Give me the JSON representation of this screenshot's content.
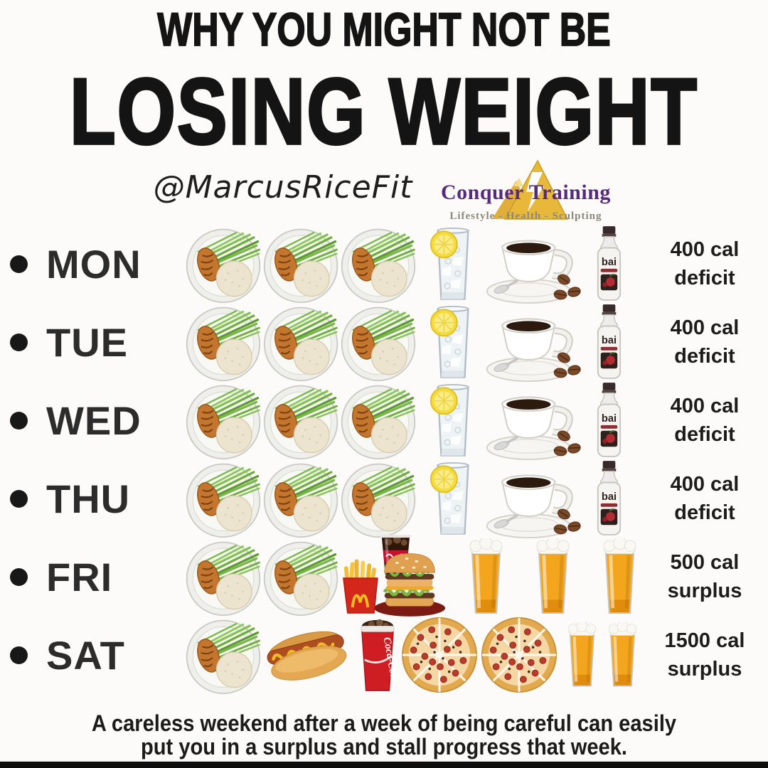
{
  "title": {
    "line1": "WHY YOU MIGHT NOT BE",
    "line2": "LOSING WEIGHT"
  },
  "brand": {
    "handle": "@MarcusRiceFit",
    "logo_text": "Conquer Training",
    "logo_tagline": "Lifestyle - Health - Sculpting"
  },
  "colors": {
    "title_black": "#141414",
    "day_label": "#2c2c2c",
    "logo_purple": "#572a7d",
    "logo_gold": "#e8b83a",
    "coke_red": "#ce1d23",
    "mcdonalds_red": "#d3271c",
    "beer_amber": "#f3a51e",
    "background": "#fcfbf9"
  },
  "week": {
    "rows": [
      {
        "day": "MON",
        "items": [
          "meal-plate",
          "meal-plate",
          "meal-plate",
          "water-lemon",
          "coffee",
          "bai-bottle"
        ],
        "result": {
          "line1": "400 cal",
          "line2": "deficit"
        }
      },
      {
        "day": "TUE",
        "items": [
          "meal-plate",
          "meal-plate",
          "meal-plate",
          "water-lemon",
          "coffee",
          "bai-bottle"
        ],
        "result": {
          "line1": "400 cal",
          "line2": "deficit"
        }
      },
      {
        "day": "WED",
        "items": [
          "meal-plate",
          "meal-plate",
          "meal-plate",
          "water-lemon",
          "coffee",
          "bai-bottle"
        ],
        "result": {
          "line1": "400 cal",
          "line2": "deficit"
        }
      },
      {
        "day": "THU",
        "items": [
          "meal-plate",
          "meal-plate",
          "meal-plate",
          "water-lemon",
          "coffee",
          "bai-bottle"
        ],
        "result": {
          "line1": "400 cal",
          "line2": "deficit"
        }
      },
      {
        "day": "FRI",
        "items": [
          "meal-plate",
          "meal-plate",
          "mcdonalds-meal",
          "beer",
          "beer",
          "beer"
        ],
        "result": {
          "line1": "500 cal",
          "line2": "surplus"
        }
      },
      {
        "day": "SAT",
        "items": [
          "meal-plate",
          "hot-dog",
          "coke-cup",
          "pizza",
          "pizza",
          "beer-small",
          "beer-small"
        ],
        "result": {
          "line1": "1500 cal",
          "line2": "surplus"
        }
      }
    ]
  },
  "footer": {
    "line1": "A careless weekend after a week of being careful can easily",
    "line2": "put you in a surplus and stall progress that week."
  }
}
